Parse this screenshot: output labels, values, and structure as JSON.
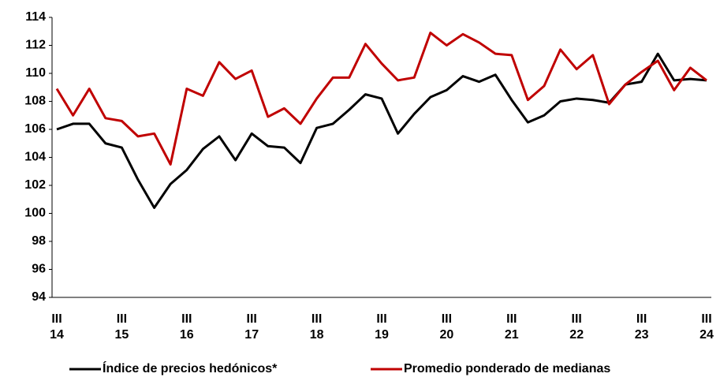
{
  "chart_data": {
    "type": "line",
    "categories": [
      [
        "III",
        "14"
      ],
      null,
      null,
      null,
      [
        "III",
        "15"
      ],
      null,
      null,
      null,
      [
        "III",
        "16"
      ],
      null,
      null,
      null,
      [
        "III",
        "17"
      ],
      null,
      null,
      null,
      [
        "III",
        "18"
      ],
      null,
      null,
      null,
      [
        "III",
        "19"
      ],
      null,
      null,
      null,
      [
        "III",
        "20"
      ],
      null,
      null,
      null,
      [
        "III",
        "21"
      ],
      null,
      null,
      null,
      [
        "III",
        "22"
      ],
      null,
      null,
      null,
      [
        "III",
        "23"
      ],
      null,
      null,
      null,
      [
        "III",
        "24"
      ]
    ],
    "series": [
      {
        "name": "Índice de precios hedónicos*",
        "color": "#000000",
        "values": [
          106.0,
          106.4,
          106.4,
          105.0,
          104.7,
          102.4,
          100.4,
          102.1,
          103.1,
          104.6,
          105.5,
          103.8,
          105.7,
          104.8,
          104.7,
          103.6,
          106.1,
          106.4,
          107.4,
          108.5,
          108.2,
          105.7,
          107.1,
          108.3,
          108.8,
          109.8,
          109.4,
          109.9,
          108.1,
          106.5,
          107.0,
          108.0,
          108.2,
          108.1,
          107.9,
          109.2,
          109.4,
          111.4,
          109.5,
          109.6,
          109.5
        ]
      },
      {
        "name": "Promedio ponderado de medianas",
        "color": "#c00000",
        "values": [
          108.9,
          107.0,
          108.9,
          106.8,
          106.6,
          105.5,
          105.7,
          103.5,
          108.9,
          108.4,
          110.8,
          109.6,
          110.2,
          106.9,
          107.5,
          106.4,
          108.2,
          109.7,
          109.7,
          112.1,
          110.7,
          109.5,
          109.7,
          112.9,
          112.0,
          112.8,
          112.2,
          111.4,
          111.3,
          108.1,
          109.1,
          111.7,
          110.3,
          111.3,
          107.8,
          109.2,
          110.1,
          110.9,
          108.8,
          110.4,
          109.5
        ]
      }
    ],
    "ylim": [
      94,
      114
    ],
    "yticks": [
      94,
      96,
      98,
      100,
      102,
      104,
      106,
      108,
      110,
      112,
      114
    ],
    "grid": false,
    "legend": "bottom"
  }
}
